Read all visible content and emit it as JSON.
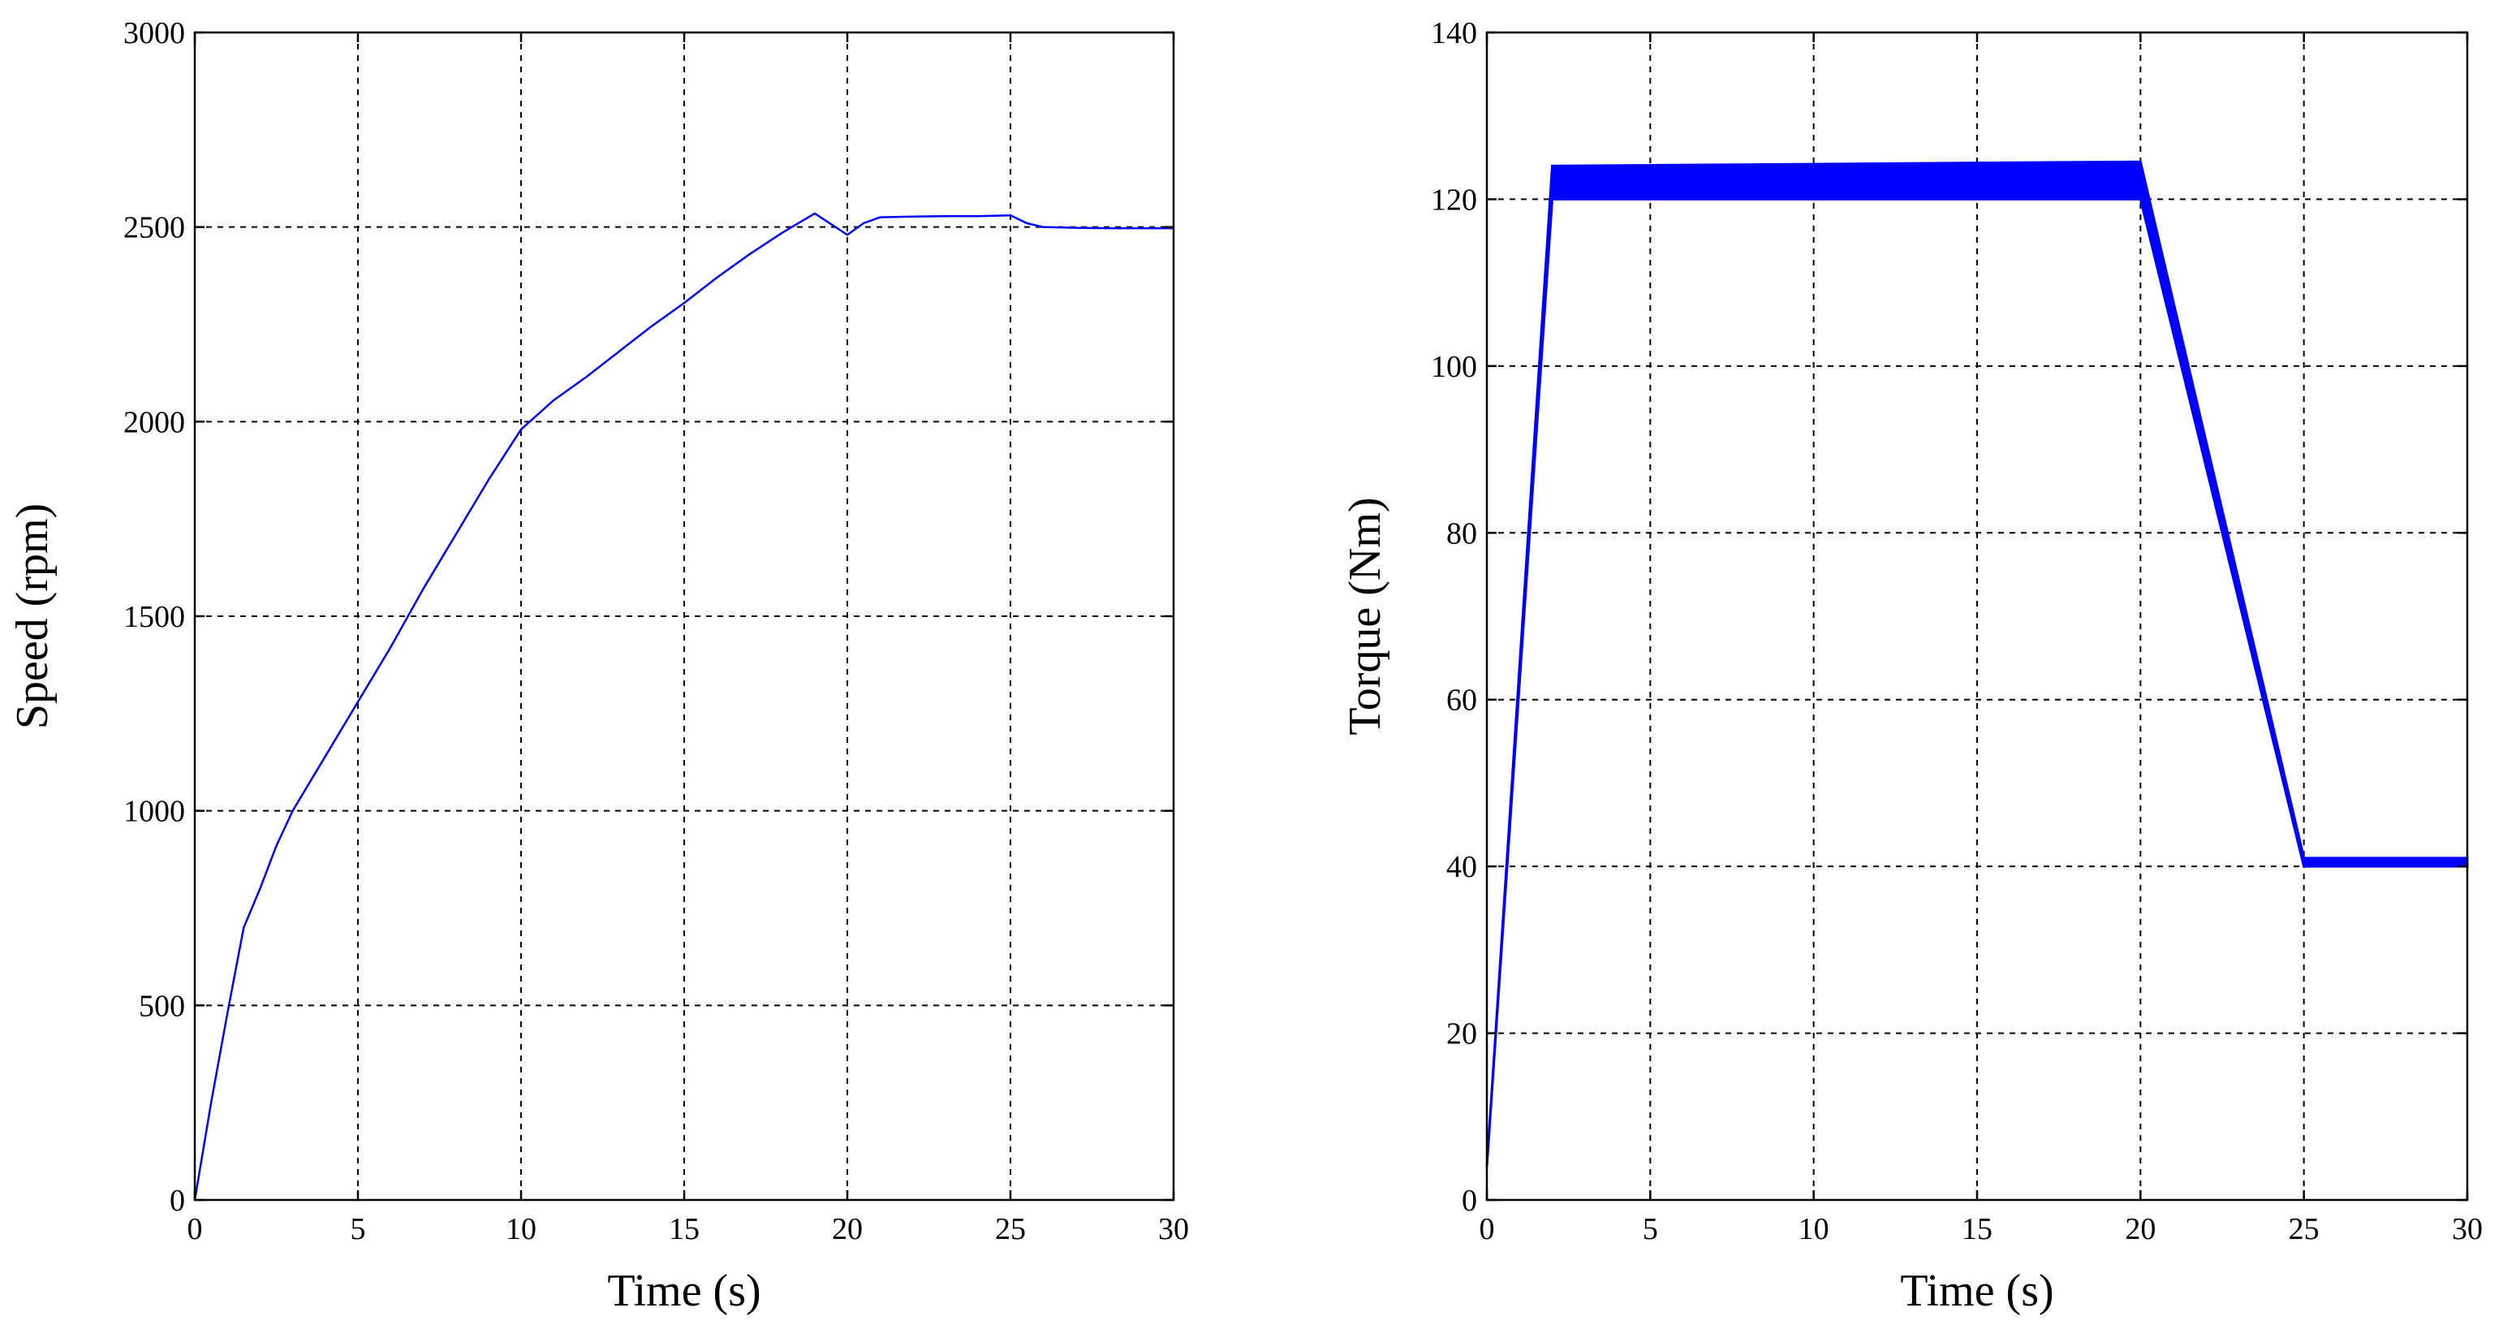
{
  "chart_data": [
    {
      "type": "line",
      "xlabel": "Time (s)",
      "ylabel": "Speed (rpm)",
      "xlim": [
        0,
        30
      ],
      "ylim": [
        0,
        3000
      ],
      "xticks": [
        0,
        5,
        10,
        15,
        20,
        25,
        30
      ],
      "yticks": [
        0,
        500,
        1000,
        1500,
        2000,
        2500,
        3000
      ],
      "grid": true,
      "series_color": "#0000ff",
      "series": [
        {
          "x": [
            0,
            0.5,
            1,
            1.5,
            2,
            2.5,
            3,
            4,
            5,
            6,
            7,
            8,
            9,
            10,
            11,
            12,
            13,
            14,
            15,
            16,
            17,
            18,
            19,
            20,
            20.5,
            21,
            22,
            23,
            24,
            25,
            25.5,
            26,
            27,
            28,
            29,
            30
          ],
          "y": [
            0,
            250,
            480,
            700,
            800,
            910,
            1000,
            1140,
            1280,
            1420,
            1570,
            1710,
            1850,
            1980,
            2055,
            2115,
            2180,
            2245,
            2305,
            2370,
            2430,
            2485,
            2535,
            2480,
            2510,
            2525,
            2527,
            2528,
            2528,
            2530,
            2510,
            2500,
            2498,
            2497,
            2497,
            2497
          ]
        }
      ]
    },
    {
      "type": "area",
      "xlabel": "Time (s)",
      "ylabel": "Torque (Nm)",
      "xlim": [
        0,
        30
      ],
      "ylim": [
        0,
        140
      ],
      "xticks": [
        0,
        5,
        10,
        15,
        20,
        25,
        30
      ],
      "yticks": [
        0,
        20,
        40,
        60,
        80,
        100,
        120,
        140
      ],
      "grid": true,
      "series_color": "#0000ff",
      "series": [
        {
          "x": [
            0,
            2,
            20,
            25,
            30
          ],
          "upper": [
            4,
            124,
            124.5,
            41,
            41
          ],
          "lower": [
            4,
            120,
            120,
            40,
            40
          ]
        }
      ]
    }
  ]
}
